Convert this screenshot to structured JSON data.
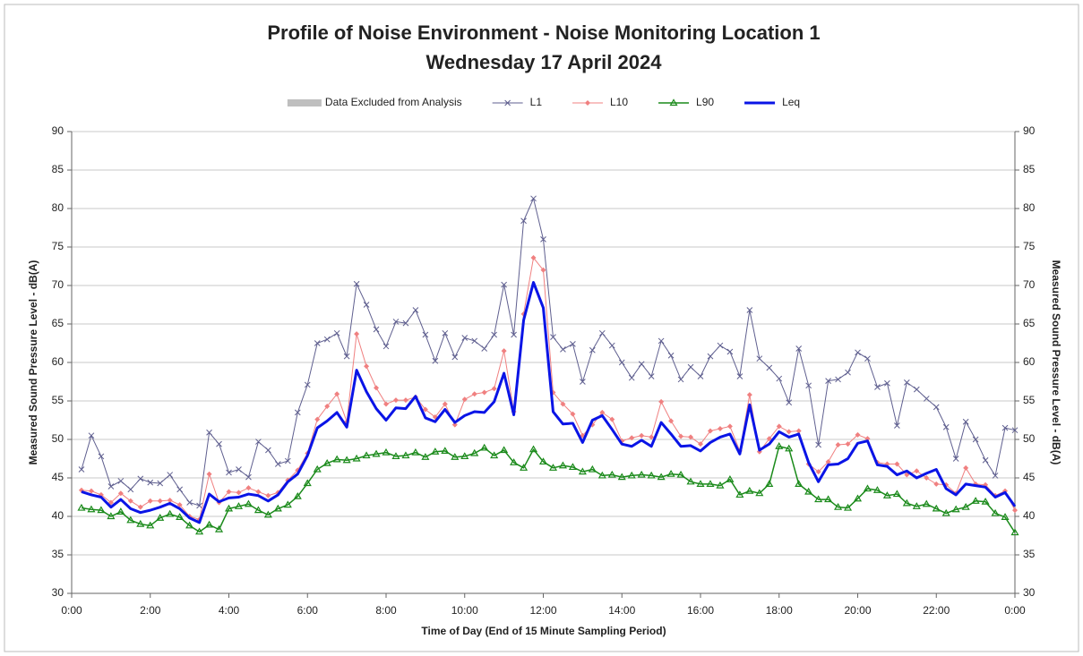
{
  "chart_data": {
    "type": "line",
    "title": "Profile of Noise Environment - Noise Monitoring Location 1",
    "subtitle": "Wednesday 17 April 2024",
    "xlabel": "Time of Day (End of 15 Minute Sampling Period)",
    "ylabel": "Measured Sound Pressure Level - dB(A)",
    "y2label": "Measured Sound Pressure Level - dB(A)",
    "xlim": [
      0,
      24
    ],
    "xticks": [
      {
        "value": 0,
        "label": "0:00"
      },
      {
        "value": 2,
        "label": "2:00"
      },
      {
        "value": 4,
        "label": "4:00"
      },
      {
        "value": 6,
        "label": "6:00"
      },
      {
        "value": 8,
        "label": "8:00"
      },
      {
        "value": 10,
        "label": "10:00"
      },
      {
        "value": 12,
        "label": "12:00"
      },
      {
        "value": 14,
        "label": "14:00"
      },
      {
        "value": 16,
        "label": "16:00"
      },
      {
        "value": 18,
        "label": "18:00"
      },
      {
        "value": 20,
        "label": "20:00"
      },
      {
        "value": 22,
        "label": "22:00"
      },
      {
        "value": 24,
        "label": "0:00"
      }
    ],
    "ylim": [
      30,
      90
    ],
    "yticks": [
      30,
      35,
      40,
      45,
      50,
      55,
      60,
      65,
      70,
      75,
      80,
      85,
      90
    ],
    "y2lim": [
      30,
      90
    ],
    "y2ticks": [
      30,
      35,
      40,
      45,
      50,
      55,
      60,
      65,
      70,
      75,
      80,
      85,
      90
    ],
    "grid": true,
    "legend": "top",
    "x": [
      0.25,
      0.5,
      0.75,
      1,
      1.25,
      1.5,
      1.75,
      2,
      2.25,
      2.5,
      2.75,
      3,
      3.25,
      3.5,
      3.75,
      4,
      4.25,
      4.5,
      4.75,
      5,
      5.25,
      5.5,
      5.75,
      6,
      6.25,
      6.5,
      6.75,
      7,
      7.25,
      7.5,
      7.75,
      8,
      8.25,
      8.5,
      8.75,
      9,
      9.25,
      9.5,
      9.75,
      10,
      10.25,
      10.5,
      10.75,
      11,
      11.25,
      11.5,
      11.75,
      12,
      12.25,
      12.5,
      12.75,
      13,
      13.25,
      13.5,
      13.75,
      14,
      14.25,
      14.5,
      14.75,
      15,
      15.25,
      15.5,
      15.75,
      16,
      16.25,
      16.5,
      16.75,
      17,
      17.25,
      17.5,
      17.75,
      18,
      18.25,
      18.5,
      18.75,
      19,
      19.25,
      19.5,
      19.75,
      20,
      20.25,
      20.5,
      20.75,
      21,
      21.25,
      21.5,
      21.75,
      22,
      22.25,
      22.5,
      22.75,
      23,
      23.25,
      23.5,
      23.75,
      24
    ],
    "series": [
      {
        "name": "Data Excluded from Analysis",
        "color": "#bfbfbf",
        "style": "band",
        "values": [
          null,
          null,
          null,
          null,
          null,
          null,
          null,
          null,
          null,
          null,
          null,
          null,
          null,
          null,
          null,
          null,
          null,
          null,
          null,
          null,
          null,
          null,
          null,
          null,
          null,
          null,
          null,
          null,
          null,
          null,
          null,
          null,
          null,
          null,
          null,
          null,
          null,
          null,
          null,
          null,
          null,
          null,
          null,
          null,
          null,
          null,
          null,
          null,
          null,
          null,
          null,
          null,
          null,
          null,
          null,
          null,
          null,
          null,
          null,
          null,
          null,
          null,
          null,
          null,
          null,
          null,
          null,
          null,
          null,
          null,
          null,
          null,
          null,
          null,
          null,
          null,
          null,
          null,
          null,
          null,
          null,
          null,
          null,
          null,
          null,
          null,
          null,
          null,
          null,
          null,
          null,
          null,
          null,
          null,
          null,
          null
        ]
      },
      {
        "name": "L1",
        "color": "#5f5f8f",
        "marker": "x",
        "width": 1,
        "values": [
          46.1,
          50.5,
          47.8,
          43.9,
          44.6,
          43.5,
          44.9,
          44.4,
          44.3,
          45.4,
          43.5,
          41.8,
          41.4,
          50.9,
          49.4,
          45.7,
          46.1,
          45.1,
          49.7,
          48.6,
          46.8,
          47.2,
          53.5,
          57.1,
          62.5,
          63.0,
          63.8,
          60.8,
          70.2,
          67.5,
          64.3,
          62.1,
          65.3,
          65.1,
          66.8,
          63.6,
          60.2,
          63.8,
          60.7,
          63.2,
          62.8,
          61.8,
          63.6,
          70.1,
          63.6,
          78.4,
          81.3,
          76.0,
          63.3,
          61.7,
          62.4,
          57.5,
          61.6,
          63.8,
          62.2,
          60.0,
          58.0,
          59.8,
          58.2,
          62.8,
          60.9,
          57.8,
          59.4,
          58.2,
          60.8,
          62.2,
          61.4,
          58.2,
          66.8,
          60.5,
          59.3,
          57.9,
          54.8,
          61.8,
          57.0,
          49.3,
          57.6,
          57.8,
          58.7,
          61.3,
          60.5,
          56.8,
          57.3,
          51.8,
          57.4,
          56.5,
          55.3,
          54.2,
          51.6,
          47.5,
          52.3,
          50.0,
          47.3,
          45.3,
          51.5,
          51.2
        ]
      },
      {
        "name": "L10",
        "color": "#f08080",
        "marker": "diamond",
        "width": 1,
        "values": [
          43.4,
          43.3,
          42.8,
          41.8,
          43.0,
          42.0,
          41.2,
          42.0,
          42.0,
          42.1,
          41.5,
          40.0,
          39.6,
          45.5,
          41.8,
          43.2,
          43.1,
          43.7,
          43.2,
          42.7,
          43.1,
          44.7,
          46.0,
          48.2,
          52.6,
          54.3,
          55.9,
          52.3,
          63.7,
          59.5,
          56.7,
          54.6,
          55.1,
          55.1,
          55.5,
          53.9,
          52.9,
          54.6,
          51.9,
          55.2,
          55.9,
          56.1,
          56.6,
          61.5,
          53.6,
          66.3,
          73.6,
          72.0,
          56.1,
          54.6,
          53.3,
          50.5,
          51.9,
          53.5,
          52.6,
          49.8,
          50.2,
          50.5,
          50.3,
          54.9,
          52.4,
          50.4,
          50.3,
          49.4,
          51.1,
          51.4,
          51.7,
          48.5,
          55.8,
          48.4,
          50.1,
          51.7,
          51.0,
          51.1,
          46.8,
          45.8,
          47.1,
          49.3,
          49.4,
          50.6,
          50.1,
          47.0,
          46.8,
          46.8,
          45.4,
          45.9,
          45.0,
          44.2,
          44.1,
          43.0,
          46.3,
          44.2,
          44.1,
          42.7,
          43.3,
          40.8
        ]
      },
      {
        "name": "L90",
        "color": "#1a8a1a",
        "marker": "triangle",
        "width": 1.5,
        "values": [
          41.1,
          40.9,
          40.8,
          40.0,
          40.6,
          39.5,
          39.0,
          38.8,
          39.8,
          40.3,
          39.9,
          38.8,
          38.0,
          38.9,
          38.3,
          41.0,
          41.3,
          41.6,
          40.8,
          40.2,
          41.0,
          41.5,
          42.6,
          44.3,
          46.1,
          46.9,
          47.4,
          47.3,
          47.5,
          47.9,
          48.1,
          48.3,
          47.8,
          47.9,
          48.3,
          47.7,
          48.4,
          48.5,
          47.7,
          47.8,
          48.2,
          48.9,
          47.9,
          48.6,
          47.0,
          46.3,
          48.7,
          47.1,
          46.3,
          46.6,
          46.4,
          45.8,
          46.1,
          45.3,
          45.4,
          45.1,
          45.3,
          45.4,
          45.3,
          45.1,
          45.5,
          45.4,
          44.5,
          44.2,
          44.2,
          44.0,
          44.8,
          42.8,
          43.3,
          43.0,
          44.2,
          49.1,
          48.8,
          44.2,
          43.2,
          42.2,
          42.2,
          41.2,
          41.1,
          42.3,
          43.6,
          43.4,
          42.7,
          42.9,
          41.7,
          41.3,
          41.6,
          41.0,
          40.4,
          40.9,
          41.2,
          42.0,
          41.9,
          40.4,
          39.9,
          37.9
        ]
      },
      {
        "name": "Leq",
        "color": "#0a14e6",
        "marker": "none",
        "width": 3,
        "values": [
          43.2,
          42.8,
          42.5,
          41.2,
          42.2,
          41.0,
          40.5,
          40.8,
          41.2,
          41.7,
          41.0,
          39.8,
          39.2,
          42.9,
          41.9,
          42.4,
          42.5,
          42.9,
          42.7,
          42.0,
          42.8,
          44.5,
          45.5,
          47.9,
          51.5,
          52.4,
          53.5,
          51.6,
          59.0,
          56.2,
          54.0,
          52.5,
          54.1,
          54.0,
          55.6,
          52.8,
          52.3,
          53.9,
          52.2,
          53.1,
          53.6,
          53.5,
          54.9,
          58.6,
          53.2,
          65.5,
          70.4,
          67.1,
          53.6,
          52.0,
          52.1,
          49.6,
          52.5,
          53.1,
          51.3,
          49.4,
          49.1,
          49.9,
          49.1,
          52.2,
          50.7,
          49.1,
          49.2,
          48.5,
          49.6,
          50.3,
          50.7,
          48.1,
          54.5,
          48.6,
          49.4,
          51.0,
          50.3,
          50.7,
          47.0,
          44.5,
          46.7,
          46.8,
          47.5,
          49.5,
          49.8,
          46.7,
          46.5,
          45.4,
          45.9,
          45.0,
          45.6,
          46.1,
          43.6,
          42.8,
          44.2,
          44.0,
          43.8,
          42.5,
          43.1,
          41.3
        ]
      }
    ]
  }
}
